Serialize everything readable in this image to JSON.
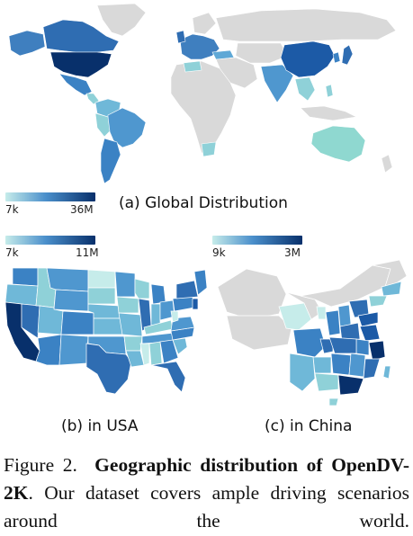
{
  "colors": {
    "low": "#c6ecea",
    "mid": "#4a8fcb",
    "high": "#08306b",
    "nodata": "#d9d9d9"
  },
  "global": {
    "caption": "(a) Global Distribution",
    "scale_min": "7k",
    "scale_max": "36M"
  },
  "usa": {
    "caption": "(b) in USA",
    "scale_min": "7k",
    "scale_max": "11M"
  },
  "china": {
    "caption": "(c) in China",
    "scale_min": "9k",
    "scale_max": "3M"
  },
  "figure_caption": {
    "label": "Figure 2.",
    "bold": "Geographic distribution of OpenDV-2K",
    "rest": ". Our dataset covers ample driving scenarios around the world."
  }
}
